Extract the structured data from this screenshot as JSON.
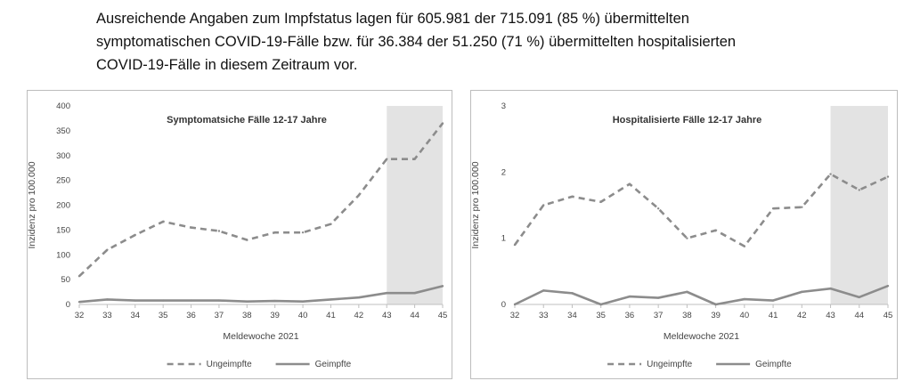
{
  "intro": {
    "line1": "Ausreichende Angaben zum Impfstatus lagen für 605.981 der 715.091 (85 %) übermittelten",
    "line2": "symptomatischen COVID-19-Fälle bzw. für 36.384 der 51.250 (71 %) übermittelten hospitalisierten",
    "line3": "COVID-19-Fälle in diesem Zeitraum vor."
  },
  "colors": {
    "line": "#8c8c8c",
    "shade": "#e3e3e3",
    "text": "#444444"
  },
  "chart_data": [
    {
      "type": "line",
      "title": "Symptomatsiche Fälle 12-17 Jahre",
      "xlabel": "Meldewoche 2021",
      "ylabel": "Inzidenz pro 100.000",
      "x": [
        32,
        33,
        34,
        35,
        36,
        37,
        38,
        39,
        40,
        41,
        42,
        43,
        44,
        45
      ],
      "xlim": [
        32,
        45
      ],
      "ylim": [
        0,
        400
      ],
      "yticks": [
        0,
        50,
        100,
        150,
        200,
        250,
        300,
        350,
        400
      ],
      "shaded_from": 43,
      "series": [
        {
          "name": "Ungeimpfte",
          "style": "dashed",
          "values": [
            57,
            110,
            140,
            167,
            155,
            148,
            130,
            145,
            145,
            162,
            220,
            293,
            293,
            365
          ]
        },
        {
          "name": "Geimpfte",
          "style": "solid",
          "values": [
            5,
            10,
            8,
            8,
            8,
            8,
            6,
            7,
            6,
            10,
            14,
            23,
            23,
            37
          ]
        }
      ],
      "legend": "bottom"
    },
    {
      "type": "line",
      "title": "Hospitalisierte Fälle 12-17 Jahre",
      "xlabel": "Meldewoche 2021",
      "ylabel": "Inzidenz pro 100.000",
      "x": [
        32,
        33,
        34,
        35,
        36,
        37,
        38,
        39,
        40,
        41,
        42,
        43,
        44,
        45
      ],
      "xlim": [
        32,
        45
      ],
      "ylim": [
        0,
        3
      ],
      "yticks": [
        0,
        1,
        2,
        3
      ],
      "shaded_from": 43,
      "series": [
        {
          "name": "Ungeimpfte",
          "style": "dashed",
          "values": [
            0.9,
            1.5,
            1.63,
            1.55,
            1.82,
            1.45,
            1.0,
            1.12,
            0.88,
            1.45,
            1.47,
            1.97,
            1.73,
            1.93
          ]
        },
        {
          "name": "Geimpfte",
          "style": "solid",
          "values": [
            0.0,
            0.21,
            0.17,
            0.0,
            0.12,
            0.1,
            0.19,
            0.0,
            0.08,
            0.06,
            0.19,
            0.24,
            0.11,
            0.28
          ]
        }
      ],
      "legend": "bottom"
    }
  ]
}
